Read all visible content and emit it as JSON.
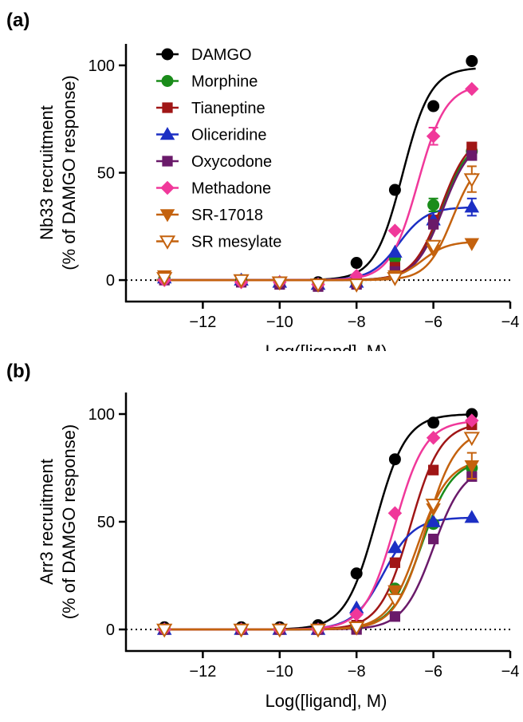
{
  "series_styles": [
    {
      "name": "DAMGO",
      "color": "#000000",
      "marker": "circle",
      "filled": true
    },
    {
      "name": "Morphine",
      "color": "#1a8c1a",
      "marker": "circle",
      "filled": true
    },
    {
      "name": "Tianeptine",
      "color": "#a01616",
      "marker": "square",
      "filled": true
    },
    {
      "name": "Oliceridine",
      "color": "#1c2fc4",
      "marker": "triangle-up",
      "filled": true
    },
    {
      "name": "Oxycodone",
      "color": "#6a1a6a",
      "marker": "square",
      "filled": true
    },
    {
      "name": "Methadone",
      "color": "#f0389a",
      "marker": "diamond",
      "filled": true
    },
    {
      "name": "SR-17018",
      "color": "#c4620e",
      "marker": "triangle-down",
      "filled": true
    },
    {
      "name": "SR mesylate",
      "color": "#c4620e",
      "marker": "triangle-down",
      "filled": false
    }
  ],
  "chart_data": [
    {
      "panel_label": "(a)",
      "type": "line",
      "xlabel": "Log([ligand], M)",
      "ylabel": [
        "Nb33 recruitment",
        "(% of DAMGO response)"
      ],
      "xlim": [
        -14,
        -4
      ],
      "ylim": [
        -10,
        110
      ],
      "xticks": [
        -12,
        -10,
        -8,
        -6,
        -4
      ],
      "yticks": [
        0,
        50,
        100
      ],
      "legend": "top-left",
      "baseline_dotted": 0,
      "series": [
        {
          "name": "DAMGO",
          "x": [
            -13,
            -11,
            -10,
            -9,
            -8,
            -7,
            -6,
            -5
          ],
          "y": [
            1,
            0,
            -1,
            -1,
            8,
            42,
            81,
            102
          ],
          "err": [
            0,
            0,
            0,
            0,
            0,
            0,
            0,
            0
          ],
          "fit": {
            "bottom": 0,
            "top": 99,
            "logec50": -6.8,
            "hill": 1.2
          }
        },
        {
          "name": "Morphine",
          "x": [
            -13,
            -11,
            -10,
            -9,
            -8,
            -7,
            -6,
            -5
          ],
          "y": [
            1,
            0,
            -1,
            -2,
            -1,
            10,
            35,
            60
          ],
          "err": [
            0,
            0,
            0,
            0,
            0,
            0,
            3,
            0
          ],
          "fit": {
            "bottom": 0,
            "top": 66,
            "logec50": -5.8,
            "hill": 1.2
          }
        },
        {
          "name": "Tianeptine",
          "x": [
            -13,
            -11,
            -10,
            -9,
            -8,
            -7,
            -6,
            -5
          ],
          "y": [
            1,
            0,
            -1,
            -2,
            -1,
            6,
            28,
            62
          ],
          "err": [
            0,
            0,
            0,
            0,
            0,
            0,
            0,
            0
          ],
          "fit": {
            "bottom": 0,
            "top": 68,
            "logec50": -5.8,
            "hill": 1.2
          }
        },
        {
          "name": "Oliceridine",
          "x": [
            -13,
            -11,
            -10,
            -9,
            -8,
            -7,
            -6,
            -5
          ],
          "y": [
            1,
            0,
            -1,
            -2,
            -1,
            13,
            28,
            34
          ],
          "err": [
            0,
            0,
            0,
            0,
            0,
            0,
            0,
            4
          ],
          "fit": {
            "bottom": 0,
            "top": 34,
            "logec50": -6.9,
            "hill": 1.2
          }
        },
        {
          "name": "Oxycodone",
          "x": [
            -13,
            -11,
            -10,
            -9,
            -8,
            -7,
            -6,
            -5
          ],
          "y": [
            0,
            -1,
            -2,
            -3,
            -2,
            4,
            26,
            58
          ],
          "err": [
            0,
            0,
            0,
            0,
            0,
            0,
            2,
            0
          ],
          "fit": {
            "bottom": 0,
            "top": 66,
            "logec50": -5.75,
            "hill": 1.2
          }
        },
        {
          "name": "Methadone",
          "x": [
            -13,
            -11,
            -10,
            -9,
            -8,
            -7,
            -6,
            -5
          ],
          "y": [
            0,
            -1,
            -1,
            -2,
            2,
            23,
            67,
            89
          ],
          "err": [
            0,
            0,
            0,
            0,
            0,
            0,
            4,
            0
          ],
          "fit": {
            "bottom": 0,
            "top": 91,
            "logec50": -6.4,
            "hill": 1.2
          }
        },
        {
          "name": "SR-17018",
          "x": [
            -13,
            -11,
            -10,
            -9,
            -8,
            -7,
            -6,
            -5
          ],
          "y": [
            2,
            0,
            -1,
            -2,
            -2,
            2,
            14,
            17
          ],
          "err": [
            0,
            0,
            0,
            0,
            0,
            0,
            0,
            0
          ],
          "fit": {
            "bottom": 0,
            "top": 18,
            "logec50": -6.3,
            "hill": 1.3
          }
        },
        {
          "name": "SR mesylate",
          "x": [
            -13,
            -11,
            -10,
            -9,
            -8,
            -7,
            -6,
            -5
          ],
          "y": [
            1,
            0,
            -1,
            -2,
            -2,
            1,
            16,
            47
          ],
          "err": [
            0,
            0,
            0,
            0,
            0,
            0,
            0,
            6
          ],
          "fit": {
            "bottom": 0,
            "top": 58,
            "logec50": -5.5,
            "hill": 1.3
          }
        }
      ]
    },
    {
      "panel_label": "(b)",
      "type": "line",
      "xlabel": "Log([ligand], M)",
      "ylabel": [
        "Arr3 recruitment",
        "(% of DAMGO response)"
      ],
      "xlim": [
        -14,
        -4
      ],
      "ylim": [
        -10,
        110
      ],
      "xticks": [
        -12,
        -10,
        -8,
        -6,
        -4
      ],
      "yticks": [
        0,
        50,
        100
      ],
      "legend": "none",
      "baseline_dotted": 0,
      "series": [
        {
          "name": "DAMGO",
          "x": [
            -13,
            -11,
            -10,
            -9,
            -8,
            -7,
            -6,
            -5
          ],
          "y": [
            1,
            1,
            1,
            2,
            26,
            79,
            96,
            100
          ],
          "err": [
            0,
            0,
            0,
            0,
            0,
            0,
            0,
            0
          ],
          "fit": {
            "bottom": 0,
            "top": 100,
            "logec50": -7.5,
            "hill": 1.1
          }
        },
        {
          "name": "Morphine",
          "x": [
            -13,
            -11,
            -10,
            -9,
            -8,
            -7,
            -6,
            -5
          ],
          "y": [
            0,
            0,
            0,
            0,
            1,
            19,
            49,
            75
          ],
          "err": [
            0,
            0,
            0,
            0,
            0,
            0,
            0,
            0
          ],
          "fit": {
            "bottom": 0,
            "top": 79,
            "logec50": -6.3,
            "hill": 1.1
          }
        },
        {
          "name": "Tianeptine",
          "x": [
            -13,
            -11,
            -10,
            -9,
            -8,
            -7,
            -6,
            -5
          ],
          "y": [
            0,
            0,
            0,
            0,
            2,
            31,
            74,
            95
          ],
          "err": [
            0,
            0,
            0,
            0,
            0,
            0,
            0,
            0
          ],
          "fit": {
            "bottom": 0,
            "top": 96,
            "logec50": -6.6,
            "hill": 1.1
          }
        },
        {
          "name": "Oliceridine",
          "x": [
            -13,
            -11,
            -10,
            -9,
            -8,
            -7,
            -6,
            -5
          ],
          "y": [
            0,
            0,
            0,
            0,
            10,
            38,
            50,
            52
          ],
          "err": [
            0,
            0,
            0,
            0,
            0,
            0,
            0,
            0
          ],
          "fit": {
            "bottom": 0,
            "top": 52,
            "logec50": -7.3,
            "hill": 1.1
          }
        },
        {
          "name": "Oxycodone",
          "x": [
            -13,
            -11,
            -10,
            -9,
            -8,
            -7,
            -6,
            -5
          ],
          "y": [
            0,
            0,
            0,
            0,
            0,
            6,
            42,
            71
          ],
          "err": [
            0,
            0,
            0,
            0,
            0,
            0,
            0,
            0
          ],
          "fit": {
            "bottom": 0,
            "top": 76,
            "logec50": -6.0,
            "hill": 1.1
          }
        },
        {
          "name": "Methadone",
          "x": [
            -13,
            -11,
            -10,
            -9,
            -8,
            -7,
            -6,
            -5
          ],
          "y": [
            0,
            0,
            0,
            0,
            7,
            54,
            89,
            97
          ],
          "err": [
            0,
            0,
            0,
            0,
            0,
            0,
            0,
            0
          ],
          "fit": {
            "bottom": 0,
            "top": 97,
            "logec50": -7.0,
            "hill": 1.1
          }
        },
        {
          "name": "SR-17018",
          "x": [
            -13,
            -11,
            -10,
            -9,
            -8,
            -7,
            -6,
            -5
          ],
          "y": [
            0,
            0,
            0,
            0,
            1,
            18,
            56,
            76
          ],
          "err": [
            0,
            0,
            0,
            0,
            0,
            0,
            0,
            6
          ],
          "fit": {
            "bottom": 0,
            "top": 79,
            "logec50": -6.4,
            "hill": 1.1
          }
        },
        {
          "name": "SR mesylate",
          "x": [
            -13,
            -11,
            -10,
            -9,
            -8,
            -7,
            -6,
            -5
          ],
          "y": [
            0,
            0,
            0,
            0,
            1,
            14,
            58,
            89
          ],
          "err": [
            0,
            0,
            0,
            0,
            0,
            0,
            0,
            0
          ],
          "fit": {
            "bottom": 0,
            "top": 93,
            "logec50": -6.2,
            "hill": 1.1
          }
        }
      ]
    }
  ]
}
